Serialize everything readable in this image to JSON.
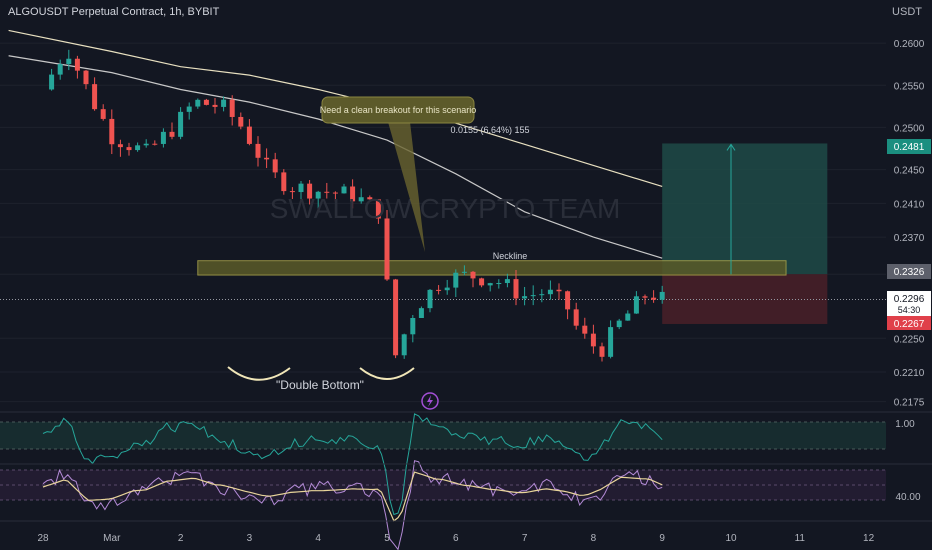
{
  "header": {
    "title": "ALGOUSDT Perpetual Contract, 1h, BYBIT",
    "currency": "USDT"
  },
  "watermark": "SWALLOW CRYPTO TEAM",
  "annotations": {
    "callout": "Need a clean breakout for this scenario",
    "measure": "0.0155 (6.64%) 155",
    "neckline": "Neckline",
    "pattern": "\"Double Bottom\""
  },
  "price_badges": {
    "target": "0.2481",
    "level": "0.2326",
    "current": "0.2296",
    "countdown": "54:30",
    "stop": "0.2267"
  },
  "indicators": {
    "osc1_label": "1.00",
    "osc2_label": "40.00"
  },
  "colors": {
    "background": "#131722",
    "up": "#26a69a",
    "down": "#ef5350",
    "target_zone": "#1f4a46",
    "stop_zone": "#4a2028",
    "neckline_zone": "#5a5a28",
    "ma_fast": "#e8e0c0",
    "ma_slow": "#c8c8c8"
  },
  "chart_data": {
    "type": "candlestick",
    "title": "ALGOUSDT Perpetual Contract, 1h, BYBIT",
    "y_axis_ticks": [
      "0.2600",
      "0.2550",
      "0.2500",
      "0.2450",
      "0.2410",
      "0.2370",
      "0.2326",
      "0.2250",
      "0.2210",
      "0.2175"
    ],
    "x_axis_ticks": [
      "28",
      "Mar",
      "2",
      "3",
      "4",
      "5",
      "6",
      "7",
      "8",
      "9",
      "10",
      "11",
      "12"
    ],
    "ylim": [
      0.2165,
      0.2625
    ],
    "close_path": [
      [
        0,
        0.2545
      ],
      [
        0.35,
        0.2595
      ],
      [
        0.7,
        0.2535
      ],
      [
        1.0,
        0.249
      ],
      [
        1.5,
        0.247
      ],
      [
        1.9,
        0.25
      ],
      [
        2.2,
        0.253
      ],
      [
        2.6,
        0.2525
      ],
      [
        2.9,
        0.25
      ],
      [
        3.3,
        0.2445
      ],
      [
        3.6,
        0.243
      ],
      [
        4.0,
        0.2425
      ],
      [
        4.5,
        0.242
      ],
      [
        4.9,
        0.24
      ],
      [
        5.1,
        0.2225
      ],
      [
        5.4,
        0.2285
      ],
      [
        5.8,
        0.232
      ],
      [
        6.2,
        0.2325
      ],
      [
        6.6,
        0.2318
      ],
      [
        7.0,
        0.23
      ],
      [
        7.3,
        0.2305
      ],
      [
        7.6,
        0.229
      ],
      [
        7.8,
        0.2255
      ],
      [
        8.1,
        0.2235
      ],
      [
        8.4,
        0.227
      ],
      [
        8.8,
        0.2305
      ],
      [
        9.0,
        0.2296
      ]
    ],
    "ma_fast": [
      [
        -0.5,
        0.2615
      ],
      [
        1,
        0.259
      ],
      [
        2,
        0.2572
      ],
      [
        3,
        0.2562
      ],
      [
        4,
        0.2545
      ],
      [
        5,
        0.2525
      ],
      [
        6,
        0.2505
      ],
      [
        7,
        0.248
      ],
      [
        8,
        0.2455
      ],
      [
        9,
        0.243
      ]
    ],
    "ma_slow": [
      [
        -0.5,
        0.2585
      ],
      [
        1,
        0.2565
      ],
      [
        2,
        0.2545
      ],
      [
        3,
        0.253
      ],
      [
        4,
        0.251
      ],
      [
        5,
        0.2485
      ],
      [
        6,
        0.2445
      ],
      [
        7,
        0.24
      ],
      [
        8,
        0.237
      ],
      [
        9,
        0.2345
      ]
    ],
    "neckline_zone": {
      "x": [
        2.25,
        10.8
      ],
      "y": [
        0.2325,
        0.2342
      ]
    },
    "target_zone": {
      "x": [
        9.0,
        11.4
      ],
      "y": [
        0.2326,
        0.2481
      ]
    },
    "stop_zone": {
      "x": [
        9.0,
        11.4
      ],
      "y": [
        0.2267,
        0.2326
      ]
    },
    "current_price": 0.2296,
    "target_price": 0.2481,
    "stop_price": 0.2267
  }
}
